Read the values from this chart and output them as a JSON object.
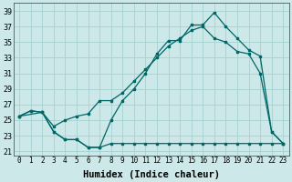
{
  "xlabel": "Humidex (Indice chaleur)",
  "bg_color": "#cce8e8",
  "grid_color": "#aad4d4",
  "line_color": "#006666",
  "x_ticks": [
    0,
    1,
    2,
    3,
    4,
    5,
    6,
    7,
    8,
    9,
    10,
    11,
    12,
    13,
    14,
    15,
    16,
    17,
    18,
    19,
    20,
    21,
    22,
    23
  ],
  "y_ticks": [
    21,
    23,
    25,
    27,
    29,
    31,
    33,
    35,
    37,
    39
  ],
  "xlim": [
    -0.5,
    23.5
  ],
  "ylim": [
    20.5,
    40.0
  ],
  "curve1_x": [
    0,
    1,
    2,
    3,
    4,
    5,
    6,
    7,
    8,
    9,
    10,
    11,
    12,
    13,
    14,
    15,
    16,
    17,
    18,
    19,
    20,
    21,
    22,
    23
  ],
  "curve1_y": [
    25.5,
    26.2,
    26.0,
    23.5,
    22.5,
    22.5,
    21.5,
    21.5,
    25.0,
    27.5,
    29.0,
    31.0,
    33.5,
    35.2,
    35.2,
    37.2,
    37.2,
    38.8,
    37.0,
    35.5,
    34.0,
    33.2,
    23.5,
    22.0
  ],
  "curve2_x": [
    0,
    1,
    2,
    3,
    4,
    5,
    6,
    7,
    8,
    9,
    10,
    11,
    12,
    13,
    14,
    15,
    16,
    17,
    18,
    19,
    20,
    21,
    22,
    23
  ],
  "curve2_y": [
    25.5,
    26.2,
    26.0,
    23.5,
    22.5,
    22.5,
    21.5,
    21.5,
    22.0,
    22.0,
    22.0,
    22.0,
    22.0,
    22.0,
    22.0,
    22.0,
    22.0,
    22.0,
    22.0,
    22.0,
    22.0,
    22.0,
    22.0,
    22.0
  ],
  "curve3_x": [
    0,
    2,
    3,
    4,
    5,
    6,
    7,
    8,
    9,
    10,
    11,
    12,
    13,
    14,
    15,
    16,
    17,
    18,
    19,
    20,
    21,
    22,
    23
  ],
  "curve3_y": [
    25.5,
    26.0,
    24.2,
    25.0,
    25.5,
    25.8,
    27.5,
    27.5,
    28.5,
    30.0,
    31.5,
    33.0,
    34.5,
    35.5,
    36.5,
    37.0,
    35.5,
    35.0,
    33.8,
    33.5,
    31.0,
    23.5,
    22.0
  ],
  "xlabel_fontsize": 7.5,
  "tick_fontsize": 5.5
}
